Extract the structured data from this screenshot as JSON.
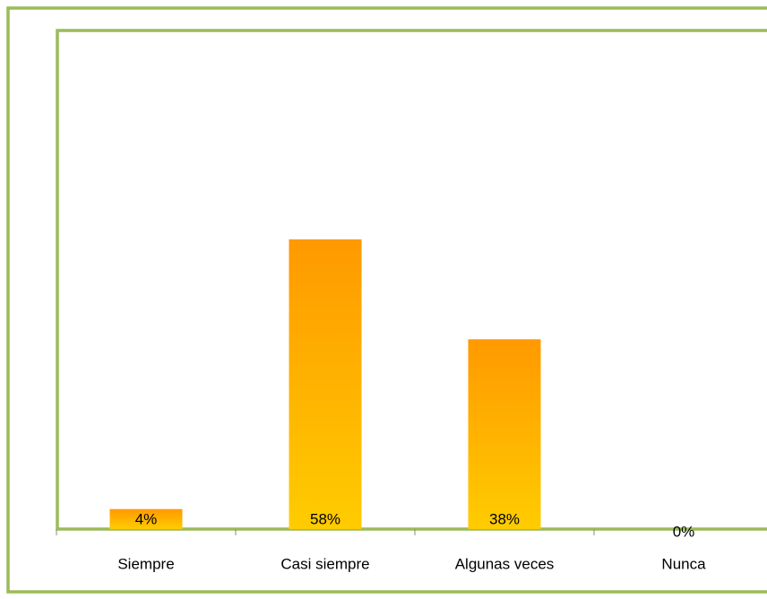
{
  "chart_data": {
    "type": "bar",
    "categories": [
      "Siempre",
      "Casi siempre",
      "Algunas veces",
      "Nunca"
    ],
    "values": [
      4,
      58,
      38,
      0
    ],
    "value_labels": [
      "4%",
      "58%",
      "38%",
      "0%"
    ],
    "colors": [
      "#ff9900",
      "#ffcc00"
    ],
    "ylim": [
      0,
      100
    ]
  }
}
